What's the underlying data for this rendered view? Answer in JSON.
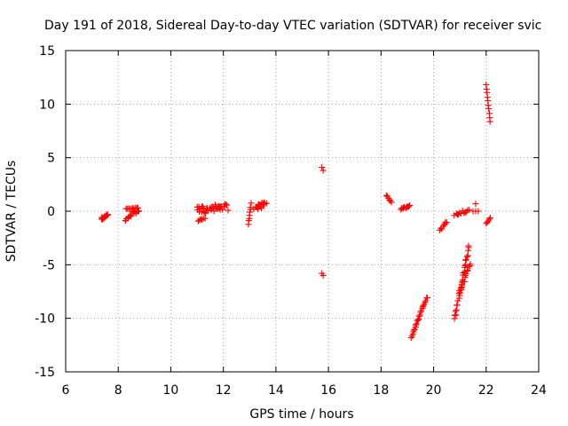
{
  "chart_data": {
    "type": "scatter",
    "title": "Day 191 of 2018, Sidereal Day-to-day VTEC variation (SDTVAR) for receiver svic",
    "xlabel": "GPS time / hours",
    "ylabel": "SDTVAR / TECUs",
    "xlim": [
      6,
      24
    ],
    "ylim": [
      -15,
      15
    ],
    "xticks": [
      6,
      8,
      10,
      12,
      14,
      16,
      18,
      20,
      22,
      24
    ],
    "yticks": [
      -15,
      -10,
      -5,
      0,
      5,
      10,
      15
    ],
    "grid": true,
    "marker": "plus",
    "color": "#ff0000",
    "series": [
      {
        "name": "SDTVAR",
        "segments": [
          {
            "x0": 7.35,
            "x1": 7.6,
            "y0": -0.7,
            "y1": -0.4,
            "count": 14,
            "spread": 0.3
          },
          {
            "x0": 8.25,
            "x1": 8.8,
            "y0": -0.8,
            "y1": 0.2,
            "count": 16,
            "spread": 0.4
          },
          {
            "x0": 8.3,
            "x1": 8.75,
            "y0": 0.25,
            "y1": 0.3,
            "count": 10,
            "spread": 0.15
          },
          {
            "x0": 11.0,
            "x1": 12.15,
            "y0": 0.1,
            "y1": 0.4,
            "count": 42,
            "spread": 0.7
          },
          {
            "x0": 11.05,
            "x1": 11.3,
            "y0": -0.9,
            "y1": -0.7,
            "count": 6,
            "spread": 0.2
          },
          {
            "x0": 12.95,
            "x1": 13.05,
            "y0": -1.2,
            "y1": 0.7,
            "count": 8,
            "spread": 0.2
          },
          {
            "x0": 13.2,
            "x1": 13.6,
            "y0": 0.2,
            "y1": 0.9,
            "count": 20,
            "spread": 0.6
          },
          {
            "x0": 15.75,
            "x1": 15.8,
            "y0": 4.1,
            "y1": 3.8,
            "count": 2,
            "spread": 0.0
          },
          {
            "x0": 15.75,
            "x1": 15.8,
            "y0": -5.8,
            "y1": -6.0,
            "count": 2,
            "spread": 0.0
          },
          {
            "x0": 18.2,
            "x1": 18.4,
            "y0": 1.5,
            "y1": 0.8,
            "count": 6,
            "spread": 0.1
          },
          {
            "x0": 18.75,
            "x1": 19.1,
            "y0": 0.2,
            "y1": 0.5,
            "count": 10,
            "spread": 0.15
          },
          {
            "x0": 19.15,
            "x1": 19.75,
            "y0": -11.8,
            "y1": -8.0,
            "count": 24,
            "spread": 0.2
          },
          {
            "x0": 20.25,
            "x1": 20.5,
            "y0": -1.8,
            "y1": -1.0,
            "count": 8,
            "spread": 0.2
          },
          {
            "x0": 20.8,
            "x1": 21.35,
            "y0": -10.0,
            "y1": -3.3,
            "count": 30,
            "spread": 0.3
          },
          {
            "x0": 21.0,
            "x1": 21.4,
            "y0": -7.5,
            "y1": -4.8,
            "count": 14,
            "spread": 0.3
          },
          {
            "x0": 20.8,
            "x1": 21.35,
            "y0": -0.3,
            "y1": 0.1,
            "count": 12,
            "spread": 0.25
          },
          {
            "x0": 21.6,
            "x1": 21.6,
            "y0": 0.7,
            "y1": 0.7,
            "count": 1,
            "spread": 0.0
          },
          {
            "x0": 21.5,
            "x1": 21.7,
            "y0": 0.0,
            "y1": 0.0,
            "count": 3,
            "spread": 0.0
          },
          {
            "x0": 22.0,
            "x1": 22.15,
            "y0": 11.8,
            "y1": 8.4,
            "count": 10,
            "spread": 0.1
          },
          {
            "x0": 22.0,
            "x1": 22.15,
            "y0": -1.2,
            "y1": -0.6,
            "count": 5,
            "spread": 0.1
          }
        ]
      }
    ]
  }
}
